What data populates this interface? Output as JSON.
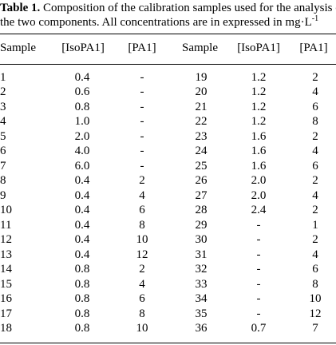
{
  "caption": {
    "label": "Table 1.",
    "text": "Composition of the calibration samples used for the analysis of the two components. All concentrations are in expressed in mg·L",
    "superscript": "-1"
  },
  "table": {
    "headers": [
      "Sample",
      "[IsoPA1]",
      "[PA1]",
      "Sample",
      "[IsoPA1]",
      "[PA1]"
    ],
    "rows": [
      [
        "1",
        "0.4",
        "-",
        "19",
        "1.2",
        "2"
      ],
      [
        "2",
        "0.6",
        "-",
        "20",
        "1.2",
        "4"
      ],
      [
        "3",
        "0.8",
        "-",
        "21",
        "1.2",
        "6"
      ],
      [
        "4",
        "1.0",
        "-",
        "22",
        "1.2",
        "8"
      ],
      [
        "5",
        "2.0",
        "-",
        "23",
        "1.6",
        "2"
      ],
      [
        "6",
        "4.0",
        "-",
        "24",
        "1.6",
        "4"
      ],
      [
        "7",
        "6.0",
        "-",
        "25",
        "1.6",
        "6"
      ],
      [
        "8",
        "0.4",
        "2",
        "26",
        "2.0",
        "2"
      ],
      [
        "9",
        "0.4",
        "4",
        "27",
        "2.0",
        "4"
      ],
      [
        "10",
        "0.4",
        "6",
        "28",
        "2.4",
        "2"
      ],
      [
        "11",
        "0.4",
        "8",
        "29",
        "-",
        "1"
      ],
      [
        "12",
        "0.4",
        "10",
        "30",
        "-",
        "2"
      ],
      [
        "13",
        "0.4",
        "12",
        "31",
        "-",
        "4"
      ],
      [
        "14",
        "0.8",
        "2",
        "32",
        "-",
        "6"
      ],
      [
        "15",
        "0.8",
        "4",
        "33",
        "-",
        "8"
      ],
      [
        "16",
        "0.8",
        "6",
        "34",
        "-",
        "10"
      ],
      [
        "17",
        "0.8",
        "8",
        "35",
        "-",
        "12"
      ],
      [
        "18",
        "0.8",
        "10",
        "36",
        "0.7",
        "7"
      ]
    ]
  }
}
